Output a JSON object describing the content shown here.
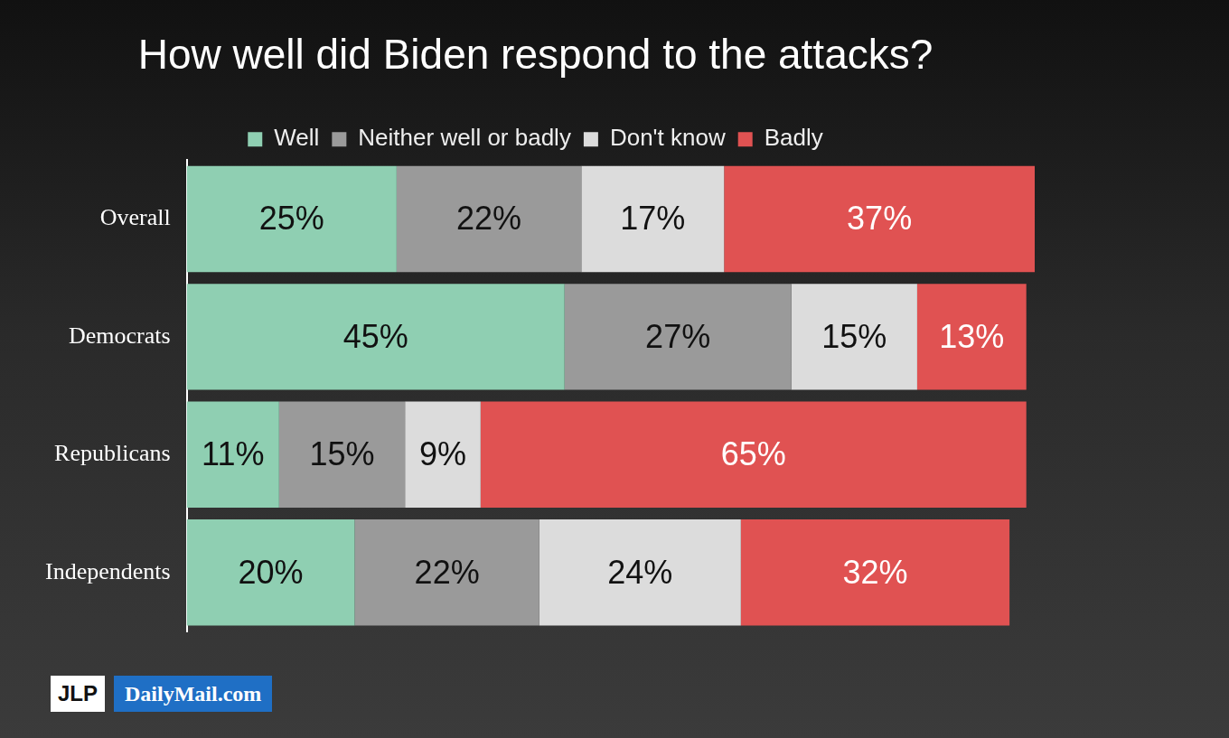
{
  "chart_data": {
    "type": "bar",
    "title": "How well did Biden respond to the attacks?",
    "orientation": "horizontal",
    "stacked": true,
    "data_labels": true,
    "legend": "top",
    "grid": false,
    "tick_labels": "y",
    "xlim": [
      0,
      101
    ],
    "categories": [
      "Overall",
      "Democrats",
      "Republicans",
      "Independents"
    ],
    "series": [
      {
        "name": "Well",
        "color": "#8fcfb2",
        "values": [
          25,
          45,
          11,
          20
        ],
        "value_labels": [
          "25%",
          "45%",
          "11%",
          "20%"
        ]
      },
      {
        "name": "Neither well or badly",
        "color": "#9a9a9a",
        "values": [
          22,
          27,
          15,
          22
        ],
        "value_labels": [
          "22%",
          "27%",
          "15%",
          "22%"
        ]
      },
      {
        "name": "Don't know",
        "color": "#dcdcdc",
        "values": [
          17,
          15,
          9,
          24
        ],
        "value_labels": [
          "17%",
          "15%",
          "9%",
          "24%"
        ]
      },
      {
        "name": "Badly",
        "color": "#e05252",
        "values": [
          37,
          13,
          65,
          32
        ],
        "value_labels": [
          "37%",
          "13%",
          "65%",
          "32%"
        ]
      }
    ]
  },
  "logos": [
    "JLP",
    "DailyMail.com"
  ]
}
